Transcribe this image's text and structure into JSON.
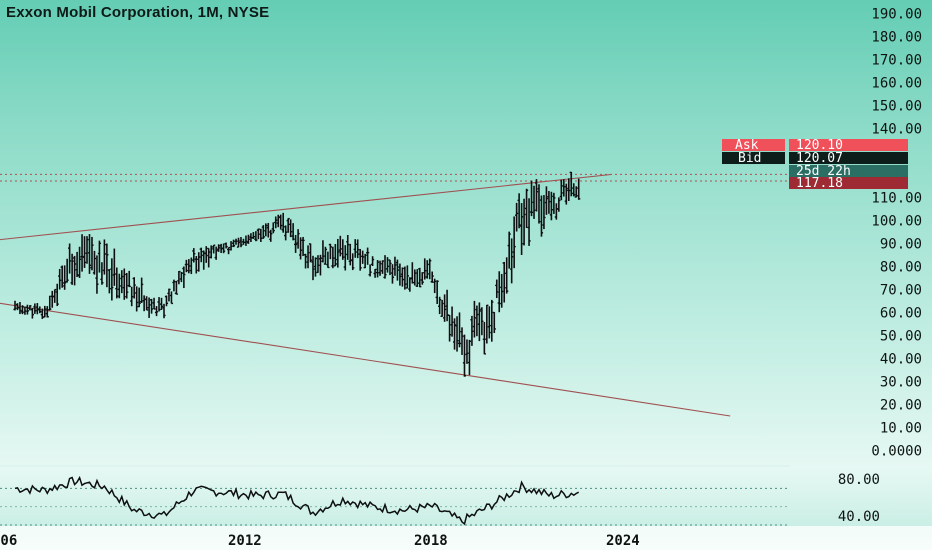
{
  "header": {
    "title": "Exxon Mobil Corporation, 1M, NYSE"
  },
  "price_axis": {
    "ticks": [
      "190.00",
      "180.00",
      "170.00",
      "160.00",
      "150.00",
      "140.00",
      "110.00",
      "100.00",
      "90.00",
      "80.00",
      "70.00",
      "60.00",
      "50.00",
      "40.00",
      "30.00",
      "20.00",
      "10.00",
      "0.0000"
    ],
    "tick_values": [
      190,
      180,
      170,
      160,
      150,
      140,
      110,
      100,
      90,
      80,
      70,
      60,
      50,
      40,
      30,
      20,
      10,
      0
    ]
  },
  "indicator_axis": {
    "ticks": [
      "80.00",
      "40.00"
    ],
    "tick_values": [
      80,
      40
    ],
    "range": [
      30,
      90
    ]
  },
  "price_tags": {
    "ask": {
      "label": "Ask",
      "value": "120.10",
      "color": "#f0505a"
    },
    "bid": {
      "label": "Bid",
      "value": "120.07",
      "color": "#0c1d1a"
    },
    "countdown": {
      "value": "25d 22h",
      "color": "#2b6e63"
    },
    "last": {
      "value": "117.18",
      "color": "#9e2a34"
    }
  },
  "x_axis": {
    "labels": [
      "006",
      "2012",
      "2018",
      "2024"
    ]
  },
  "colors": {
    "bars": "#0d0f10",
    "trendlines": "#a05050",
    "axis_text": "#0d1412",
    "dotted_ref": "#b05050"
  },
  "chart_data": [
    {
      "type": "bar",
      "subtype": "ohlc-monthly",
      "title": "Exxon Mobil Corporation, 1M, NYSE",
      "x": [
        "2005",
        "2006",
        "2007",
        "2008",
        "2009",
        "2010",
        "2011",
        "2012",
        "2013",
        "2014",
        "2015",
        "2016",
        "2017",
        "2018",
        "2019",
        "2020",
        "2021",
        "2022",
        "2023",
        "2024"
      ],
      "close": [
        62,
        60,
        84,
        80,
        68,
        62,
        84,
        88,
        92,
        98,
        82,
        88,
        80,
        76,
        76,
        42,
        58,
        105,
        106,
        117
      ],
      "high": [
        66,
        65,
        95,
        96,
        80,
        70,
        88,
        90,
        95,
        104,
        90,
        95,
        92,
        88,
        84,
        72,
        66,
        116,
        120,
        122
      ],
      "low": [
        56,
        55,
        62,
        56,
        58,
        56,
        68,
        78,
        84,
        86,
        66,
        72,
        76,
        65,
        66,
        30,
        31,
        58,
        97,
        100
      ],
      "ylim": [
        0,
        195
      ],
      "trendlines": [
        {
          "from": [
            "2004",
            91
          ],
          "to": [
            "2025",
            120
          ]
        },
        {
          "from": [
            "2004",
            65
          ],
          "to": [
            "2029",
            15
          ]
        }
      ]
    },
    {
      "type": "line",
      "subtype": "oscillator",
      "x": [
        "2005",
        "2006",
        "2007",
        "2008",
        "2009",
        "2010",
        "2011",
        "2012",
        "2013",
        "2014",
        "2015",
        "2016",
        "2017",
        "2018",
        "2019",
        "2020",
        "2021",
        "2022",
        "2023",
        "2024"
      ],
      "values": [
        70,
        68,
        78,
        72,
        46,
        40,
        68,
        66,
        62,
        64,
        44,
        58,
        50,
        46,
        50,
        34,
        52,
        72,
        62,
        66
      ],
      "ylim": [
        30,
        90
      ]
    }
  ]
}
